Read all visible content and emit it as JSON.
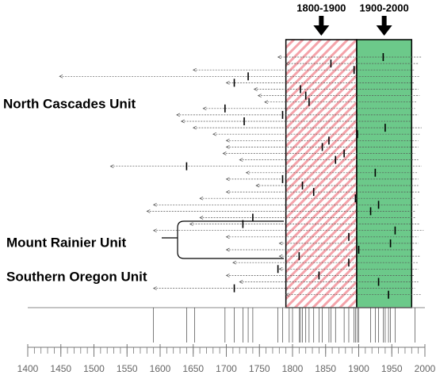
{
  "chart_data": {
    "type": "timeline",
    "group_labels": [
      "North Cascades Unit",
      "Mount Rainier Unit",
      "Southern Oregon Unit"
    ],
    "periods": [
      {
        "label": "1800-1900",
        "start": 1790,
        "end": 1897,
        "color": "#f28b95"
      },
      {
        "label": "1900-2000",
        "start": 1897,
        "end": 1980,
        "color": "#6cc98a"
      }
    ],
    "xlim": [
      1400,
      2000
    ],
    "xticks": [
      1400,
      1450,
      1500,
      1550,
      1600,
      1650,
      1700,
      1750,
      1800,
      1850,
      1900,
      1950,
      2000
    ],
    "xminor": [
      1400,
      1410,
      1420,
      1430,
      1440,
      1450,
      1460,
      1470,
      1480,
      1490,
      1500,
      1510,
      1520,
      1530,
      1540,
      1550,
      1560,
      1570,
      1580,
      1590,
      1600,
      1610,
      1620,
      1630,
      1640,
      1650,
      1660,
      1670,
      1680,
      1690,
      1700,
      1710,
      1720,
      1730,
      1740,
      1750,
      1760,
      1770,
      1780,
      1790,
      1800,
      1810,
      1820,
      1830,
      1840,
      1850,
      1860,
      1870,
      1880,
      1890,
      1900,
      1910,
      1920,
      1930,
      1940,
      1950,
      1960,
      1970,
      1980,
      1990,
      2000
    ],
    "rows": [
      {
        "start": 1778,
        "end": 1995,
        "mark": 1937
      },
      {
        "start": 1790,
        "end": 1990,
        "mark": 1858
      },
      {
        "start": 1650,
        "end": 1985,
        "mark": 1893
      },
      {
        "start": 1448,
        "end": 1992,
        "mark": 1733
      },
      {
        "start": 1700,
        "end": 1985,
        "mark": 1712
      },
      {
        "start": 1742,
        "end": 1990,
        "mark": 1812
      },
      {
        "start": 1748,
        "end": 1992,
        "mark": 1820
      },
      {
        "start": 1758,
        "end": 1988,
        "mark": 1825
      },
      {
        "start": 1665,
        "end": 1985,
        "mark": 1698
      },
      {
        "start": 1625,
        "end": 1990,
        "mark": 1785
      },
      {
        "start": 1632,
        "end": 1980,
        "mark": 1727
      },
      {
        "start": 1650,
        "end": 1995,
        "mark": 1940
      },
      {
        "start": 1680,
        "end": 1992,
        "mark": 1898
      },
      {
        "start": 1700,
        "end": 1990,
        "mark": 1855
      },
      {
        "start": 1700,
        "end": 1990,
        "mark": 1845
      },
      {
        "start": 1695,
        "end": 1985,
        "mark": 1878
      },
      {
        "start": 1720,
        "end": 1990,
        "mark": 1865
      },
      {
        "start": 1525,
        "end": 1995,
        "mark": 1640
      },
      {
        "start": 1730,
        "end": 1990,
        "mark": 1925
      },
      {
        "start": 1700,
        "end": 1990,
        "mark": 1785
      },
      {
        "start": 1745,
        "end": 1990,
        "mark": 1815
      },
      {
        "start": 1700,
        "end": 1992,
        "mark": 1832
      },
      {
        "start": 1660,
        "end": 1985,
        "mark": 1895
      },
      {
        "start": 1590,
        "end": 1990,
        "mark": 1930
      },
      {
        "start": 1580,
        "end": 1985,
        "mark": 1918
      },
      {
        "start": 1660,
        "end": 1985,
        "mark": 1740
      },
      {
        "start": 1645,
        "end": 1992,
        "mark": 1725
      },
      {
        "start": 1590,
        "end": 1998,
        "mark": 1955
      },
      {
        "start": 1700,
        "end": 1990,
        "mark": 1885
      },
      {
        "start": 1780,
        "end": 1990,
        "mark": 1948
      },
      {
        "start": 1700,
        "end": 1985,
        "mark": 1900
      },
      {
        "start": 1780,
        "end": 1992,
        "mark": 1810
      },
      {
        "start": 1710,
        "end": 1990,
        "mark": 1885
      },
      {
        "start": 1780,
        "end": 1990,
        "mark": 1778
      },
      {
        "start": 1700,
        "end": 1985,
        "mark": 1840
      },
      {
        "start": 1720,
        "end": 1990,
        "mark": 1930
      },
      {
        "start": 1590,
        "end": 1985,
        "mark": 1712
      },
      {
        "start": 1790,
        "end": 1995,
        "mark": 1945
      }
    ],
    "events": [
      1590,
      1640,
      1652,
      1698,
      1712,
      1725,
      1733,
      1740,
      1778,
      1785,
      1795,
      1800,
      1810,
      1812,
      1815,
      1820,
      1825,
      1832,
      1840,
      1845,
      1855,
      1858,
      1865,
      1878,
      1885,
      1893,
      1895,
      1898,
      1900,
      1918,
      1925,
      1930,
      1937,
      1940,
      1945,
      1948,
      1955,
      1985
    ]
  }
}
